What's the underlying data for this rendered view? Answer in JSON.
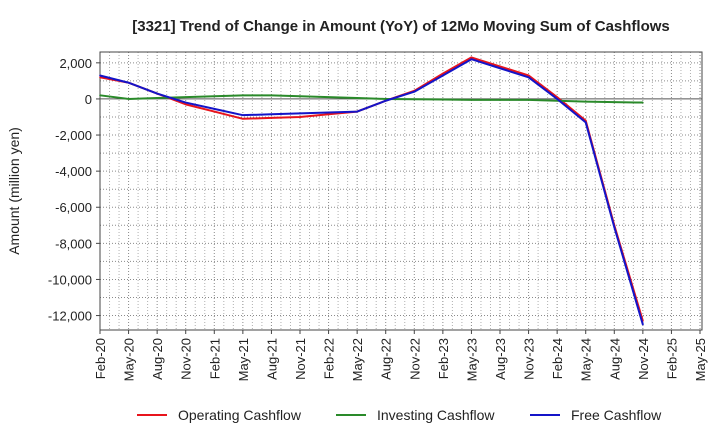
{
  "chart_data": {
    "type": "line",
    "title": "[3321]  Trend of Change in Amount (YoY) of 12Mo Moving Sum of Cashflows",
    "xlabel": "",
    "ylabel": "Amount (million yen)",
    "ylim": [
      -12800,
      2600
    ],
    "yticks": [
      2000,
      0,
      -2000,
      -4000,
      -6000,
      -8000,
      -10000,
      -12000
    ],
    "ytick_labels": [
      "2,000",
      "0",
      "-2,000",
      "-4,000",
      "-6,000",
      "-8,000",
      "-10,000",
      "-12,000"
    ],
    "categories": [
      "Feb-20",
      "May-20",
      "Aug-20",
      "Nov-20",
      "Feb-21",
      "May-21",
      "Aug-21",
      "Nov-21",
      "Feb-22",
      "May-22",
      "Aug-22",
      "Nov-22",
      "Feb-23",
      "May-23",
      "Aug-23",
      "Nov-23",
      "Feb-24",
      "May-24",
      "Aug-24",
      "Nov-24",
      "Feb-25",
      "May-25"
    ],
    "series": [
      {
        "name": "Operating Cashflow",
        "color": "#e8141c",
        "values": [
          1200,
          900,
          300,
          -300,
          -700,
          -1100,
          -1050,
          -1000,
          -850,
          -700,
          -100,
          450,
          1400,
          2300,
          1800,
          1300,
          100,
          -1200,
          -7000,
          -12300,
          null,
          null
        ]
      },
      {
        "name": "Investing Cashflow",
        "color": "#2a8a2a",
        "values": [
          200,
          0,
          50,
          100,
          150,
          200,
          200,
          150,
          100,
          50,
          0,
          -20,
          -30,
          -50,
          -50,
          -50,
          -100,
          -150,
          -180,
          -200,
          null,
          null
        ]
      },
      {
        "name": "Free Cashflow",
        "color": "#1414c8",
        "values": [
          1300,
          900,
          300,
          -200,
          -550,
          -900,
          -850,
          -800,
          -750,
          -700,
          -100,
          400,
          1300,
          2200,
          1700,
          1200,
          0,
          -1300,
          -7100,
          -12500,
          null,
          null
        ]
      }
    ]
  }
}
